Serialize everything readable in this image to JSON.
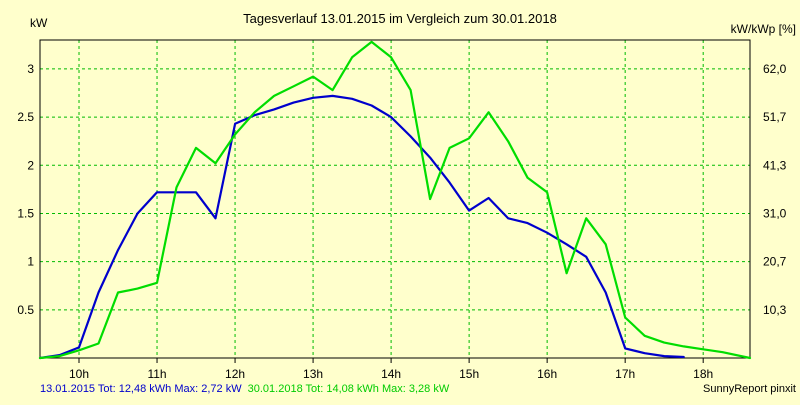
{
  "chart_data": {
    "type": "line",
    "title": "Tagesverlauf 13.01.2015 im Vergleich zum 30.01.2018",
    "y_left_unit": "kW",
    "y_right_unit": "kW/kWp [%]",
    "x_ticks": [
      "10h",
      "11h",
      "12h",
      "13h",
      "14h",
      "15h",
      "16h",
      "17h",
      "18h"
    ],
    "y_left_ticks": [
      "0.5",
      "1",
      "1.5",
      "2",
      "2.5",
      "3"
    ],
    "y_left_tick_values": [
      0.5,
      1,
      1.5,
      2,
      2.5,
      3
    ],
    "y_right_ticks": [
      "10,3",
      "20,7",
      "31,0",
      "41,3",
      "51,7",
      "62,0"
    ],
    "y_right_tick_values": [
      0.5,
      1,
      1.5,
      2,
      2.5,
      3
    ],
    "xlim": [
      9.5,
      18.6
    ],
    "ylim": [
      0,
      3.3
    ],
    "grid": true,
    "series": [
      {
        "name": "13.01.2015",
        "color": "#0000cc",
        "x": [
          9.5,
          9.75,
          10.0,
          10.25,
          10.5,
          10.75,
          11.0,
          11.25,
          11.5,
          11.75,
          12.0,
          12.25,
          12.5,
          12.75,
          13.0,
          13.25,
          13.5,
          13.75,
          14.0,
          14.25,
          14.5,
          14.75,
          15.0,
          15.25,
          15.5,
          15.75,
          16.0,
          16.25,
          16.5,
          16.75,
          17.0,
          17.25,
          17.5,
          17.75
        ],
        "values": [
          0.0,
          0.03,
          0.11,
          0.68,
          1.12,
          1.5,
          1.72,
          1.72,
          1.72,
          1.45,
          2.43,
          2.52,
          2.58,
          2.65,
          2.7,
          2.72,
          2.69,
          2.62,
          2.5,
          2.3,
          2.08,
          1.82,
          1.53,
          1.66,
          1.45,
          1.4,
          1.3,
          1.18,
          1.05,
          0.68,
          0.1,
          0.05,
          0.02,
          0.01
        ]
      },
      {
        "name": "30.01.2018",
        "color": "#00dd00",
        "x": [
          9.5,
          9.75,
          10.0,
          10.25,
          10.5,
          10.75,
          11.0,
          11.25,
          11.5,
          11.75,
          12.0,
          12.25,
          12.5,
          12.75,
          13.0,
          13.25,
          13.5,
          13.75,
          14.0,
          14.25,
          14.5,
          14.75,
          15.0,
          15.25,
          15.5,
          15.75,
          16.0,
          16.25,
          16.5,
          16.75,
          17.0,
          17.25,
          17.5,
          17.75,
          18.0,
          18.25,
          18.6
        ],
        "values": [
          0.0,
          0.02,
          0.08,
          0.15,
          0.68,
          0.72,
          0.78,
          1.77,
          2.18,
          2.02,
          2.32,
          2.55,
          2.72,
          2.82,
          2.92,
          2.78,
          3.12,
          3.28,
          3.12,
          2.78,
          1.65,
          2.18,
          2.28,
          2.55,
          2.25,
          1.87,
          1.72,
          0.88,
          1.45,
          1.18,
          0.42,
          0.23,
          0.16,
          0.12,
          0.09,
          0.06,
          0.0
        ]
      }
    ]
  },
  "footer": {
    "series1_text": "13.01.2015 Tot: 12,48 kWh Max: 2,72 kW",
    "series2_text": "30.01.2018 Tot: 14,08 kWh Max: 3,28 kW",
    "credit": "SunnyReport pinxit"
  }
}
